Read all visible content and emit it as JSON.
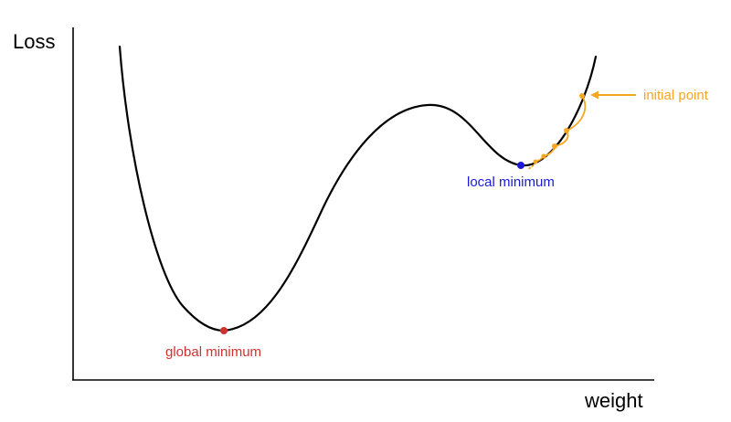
{
  "axes": {
    "ylabel": "Loss",
    "xlabel": "weight"
  },
  "annotations": {
    "global_min": "global minimum",
    "local_min": "local minimum",
    "initial_point": "initial point"
  },
  "colors": {
    "curve": "#000000",
    "global_min": "#d0312d",
    "local_min": "#1a1ad6",
    "descent": "#f5a623"
  }
}
